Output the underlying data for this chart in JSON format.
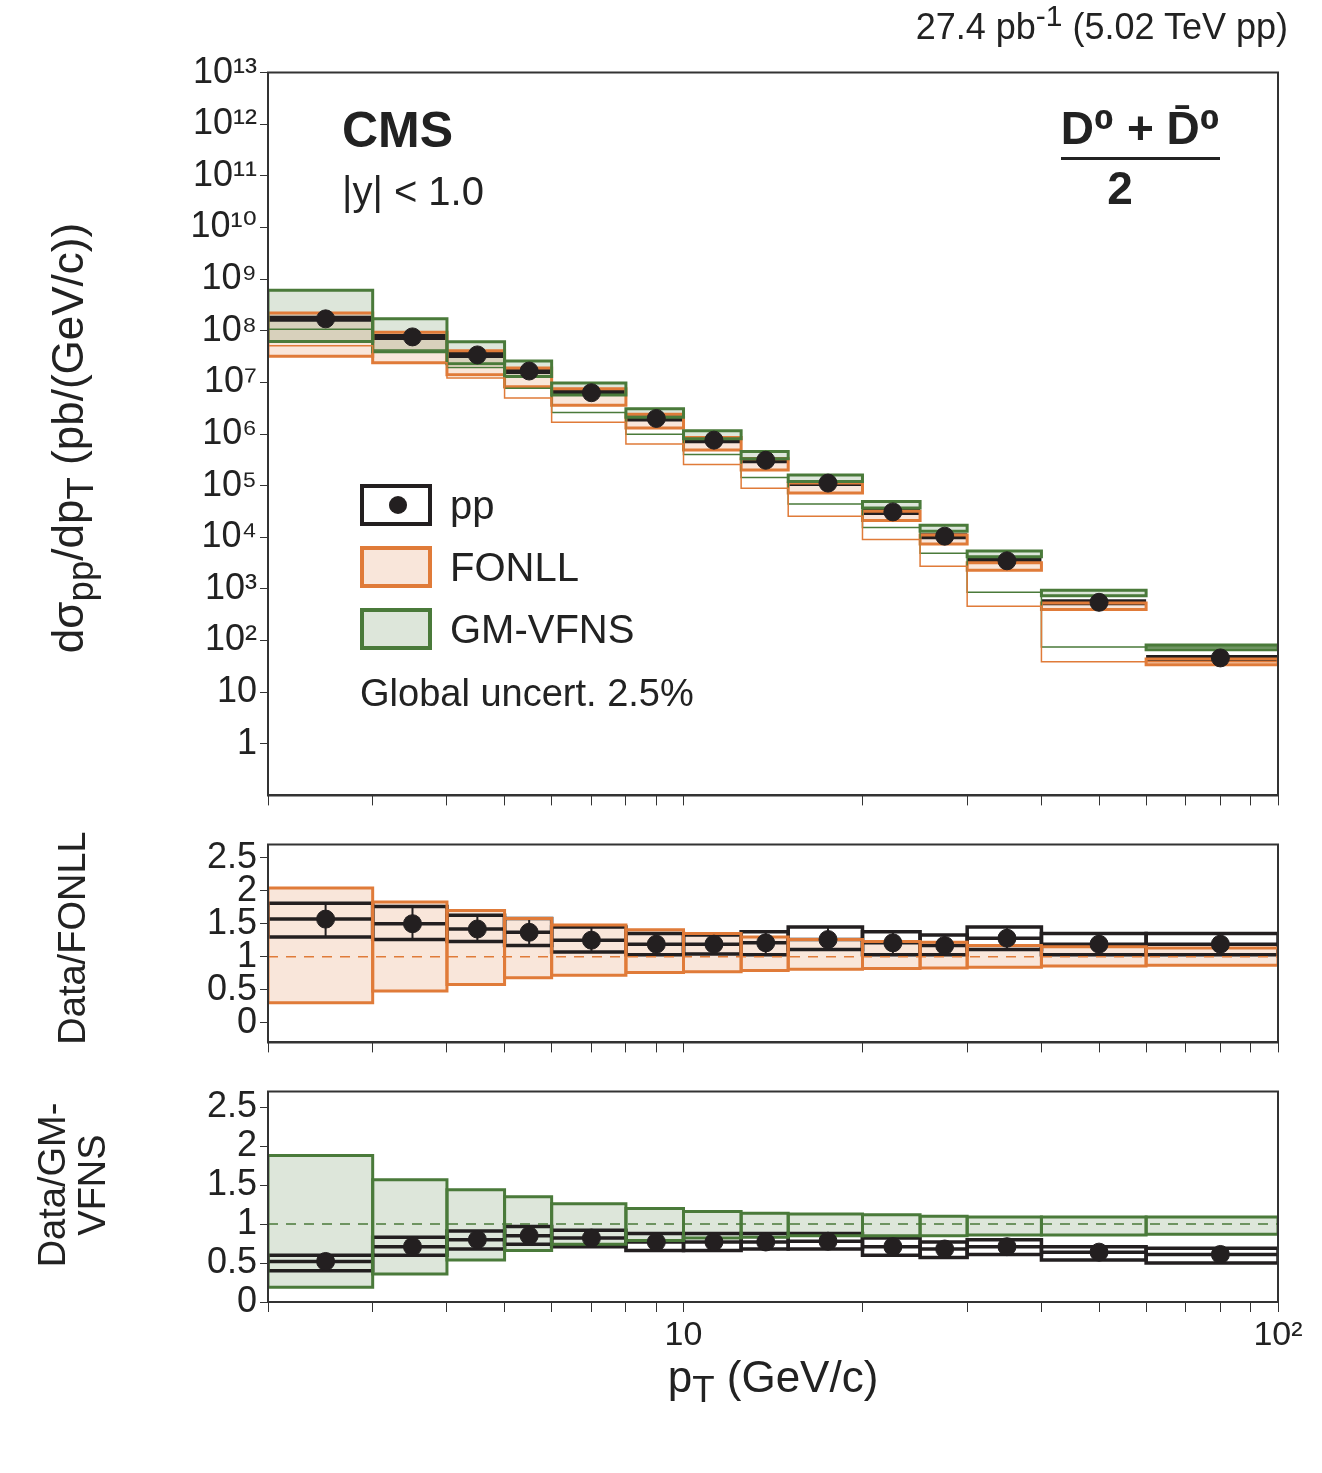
{
  "chart_data": [
    {
      "type": "scatter",
      "title": "27.4 pb$^{-1}$ (5.02 TeV pp)",
      "ylabel": "dσ$_{pp}$/dp$_{T}$ (pb/(GeV/c))",
      "annotations": [
        "CMS",
        "|y| < 1.0",
        "D⁰ + D̄⁰",
        "2",
        "Global uncert. 2.5%"
      ],
      "log": "xy",
      "xlim": [
        2,
        100
      ],
      "xticks": [
        {
          "value": 2,
          "label": null
        },
        {
          "value": 3,
          "label": null
        },
        {
          "value": 4,
          "label": null
        },
        {
          "value": 5,
          "label": null
        },
        {
          "value": 6,
          "label": null
        },
        {
          "value": 7,
          "label": null
        },
        {
          "value": 8,
          "label": null
        },
        {
          "value": 9,
          "label": null
        },
        {
          "value": 10,
          "label": null
        },
        {
          "value": 20,
          "label": null
        },
        {
          "value": 30,
          "label": null
        },
        {
          "value": 40,
          "label": null
        },
        {
          "value": 50,
          "label": null
        },
        {
          "value": 60,
          "label": null
        },
        {
          "value": 70,
          "label": null
        },
        {
          "value": 80,
          "label": null
        },
        {
          "value": 90,
          "label": null
        },
        {
          "value": 100,
          "label": null
        }
      ],
      "ylim": [
        0.1,
        10000000000000.0
      ],
      "yticks": [
        1,
        10,
        {
          "value": 100,
          "label": "10²"
        },
        {
          "value": 1000.0,
          "label": "10³"
        },
        {
          "value": 10000.0,
          "label": "10⁴"
        },
        {
          "value": 100000.0,
          "label": "10⁵"
        },
        {
          "value": 1000000.0,
          "label": "10⁶"
        },
        {
          "value": 10000000.0,
          "label": "10⁷"
        },
        {
          "value": 100000000.0,
          "label": "10⁸"
        },
        {
          "value": 1000000000.0,
          "label": "10⁹"
        },
        {
          "value": 10000000000.0,
          "label": "10¹⁰"
        },
        {
          "value": 100000000000.0,
          "label": "10¹¹"
        },
        {
          "value": 1000000000000.0,
          "label": "10¹²"
        },
        {
          "value": 10000000000000.0,
          "label": "10¹³"
        }
      ],
      "tick_labels": "y",
      "legend": "bottom left",
      "series": [
        {
          "name": "pp",
          "type": "scatter",
          "marker": "circle",
          "color": "#231f20",
          "x": [
            2.5,
            3.5,
            4.5,
            5.5,
            7,
            9,
            11.25,
            13.75,
            17.5,
            22.5,
            27.5,
            35,
            50,
            80
          ],
          "values": [
            170000000.0,
            76000000.0,
            34000000.0,
            16600000.0,
            6300000.0,
            2000000.0,
            760000.0,
            310000.0,
            112000.0,
            31000.0,
            10500.0,
            3500,
            550,
            46
          ],
          "xerrors": [
            [
              2,
              3
            ],
            [
              3,
              4
            ],
            [
              4,
              5
            ],
            [
              5,
              6
            ],
            [
              6,
              8
            ],
            [
              8,
              10
            ],
            [
              10,
              12.5
            ],
            [
              12.5,
              15
            ],
            [
              15,
              20
            ],
            [
              20,
              25
            ],
            [
              25,
              30
            ],
            [
              30,
              40
            ],
            [
              40,
              60
            ],
            [
              60,
              100
            ]
          ]
        },
        {
          "name": "FONLL",
          "type": "step",
          "color": "#e07b39",
          "x": [
            2,
            3,
            4,
            5,
            6,
            8,
            10,
            12.5,
            15,
            20,
            25,
            30,
            40,
            60,
            100
          ],
          "values": [
            108000000.0,
            51000000.0,
            24000000.0,
            12100000.0,
            5000000.0,
            1680000.0,
            640000.0,
            256000.0,
            89000.0,
            25600.0,
            9000.0,
            2730,
            460,
            39,
            39
          ],
          "lower": [
            32000000.0,
            24000000.0,
            14000000.0,
            8200000.0,
            3600000.0,
            1300000.0,
            490000.0,
            200000.0,
            72000.0,
            21000.0,
            7400,
            2300,
            400,
            34,
            34
          ],
          "upper": [
            220000000.0,
            93000000.0,
            41000000.0,
            19000000.0,
            7500000.0,
            2400000.0,
            860000.0,
            330000.0,
            112000.0,
            32000.0,
            11000.0,
            3200,
            530,
            44,
            44
          ]
        },
        {
          "name": "GM-VFNS",
          "type": "step",
          "color": "#4a7a3a",
          "x": [
            2,
            3,
            4,
            5,
            6,
            8,
            10,
            12.5,
            15,
            20,
            25,
            30,
            40,
            60,
            100
          ],
          "values": [
            330000000.0,
            107000000.0,
            42500000.0,
            19500000.0,
            7700000.0,
            2600000.0,
            990000.0,
            400000.0,
            144000.0,
            44000.0,
            15400.0,
            4900,
            860,
            75,
            75
          ],
          "lower": [
            62000000.0,
            39000000.0,
            23000000.0,
            13000000.0,
            5700000.0,
            2100000.0,
            810000.0,
            330000.0,
            120000.0,
            37000.0,
            13000.0,
            4200,
            740,
            66,
            66
          ],
          "upper": [
            610000000.0,
            170000000.0,
            61000000.0,
            26000000.0,
            9700000.0,
            3100000.0,
            1150000.0,
            460000.0,
            160000.0,
            49000.0,
            17000.0,
            5400,
            940,
            82,
            82
          ]
        }
      ]
    },
    {
      "type": "scatter",
      "ylabel": "Data/FONLL",
      "log": "x",
      "xlim": [
        2,
        100
      ],
      "xticks": [
        {
          "value": 2,
          "label": null
        },
        {
          "value": 3,
          "label": null
        },
        {
          "value": 4,
          "label": null
        },
        {
          "value": 5,
          "label": null
        },
        {
          "value": 6,
          "label": null
        },
        {
          "value": 7,
          "label": null
        },
        {
          "value": 8,
          "label": null
        },
        {
          "value": 9,
          "label": null
        },
        {
          "value": 10,
          "label": null
        },
        {
          "value": 20,
          "label": null
        },
        {
          "value": 30,
          "label": null
        },
        {
          "value": 40,
          "label": null
        },
        {
          "value": 50,
          "label": null
        },
        {
          "value": 60,
          "label": null
        },
        {
          "value": 70,
          "label": null
        },
        {
          "value": 80,
          "label": null
        },
        {
          "value": 90,
          "label": null
        },
        {
          "value": 100,
          "label": null
        }
      ],
      "ylim": [
        -0.3,
        2.7
      ],
      "yticks": [
        0,
        0.5,
        1,
        1.5,
        2,
        2.5
      ],
      "tick_labels": "y",
      "series": [
        {
          "type": "scatter",
          "marker": "circle",
          "color": "#231f20",
          "x": [
            2.5,
            3.5,
            4.5,
            5.5,
            7,
            9,
            11.25,
            13.75,
            17.5,
            22.5,
            27.5,
            35,
            50,
            80
          ],
          "values": [
            1.57,
            1.5,
            1.42,
            1.37,
            1.25,
            1.19,
            1.19,
            1.21,
            1.26,
            1.21,
            1.17,
            1.28,
            1.19,
            1.19
          ],
          "errors": [
            [
              1.3,
              1.81
            ],
            [
              1.26,
              1.76
            ],
            [
              1.23,
              1.63
            ],
            [
              1.17,
              1.58
            ],
            [
              1.07,
              1.45
            ],
            [
              1.03,
              1.35
            ],
            [
              1.04,
              1.33
            ],
            [
              1.03,
              1.38
            ],
            [
              1.11,
              1.45
            ],
            [
              1.03,
              1.38
            ],
            [
              1.03,
              1.33
            ],
            [
              1.11,
              1.45
            ],
            [
              1.03,
              1.35
            ],
            [
              1.03,
              1.35
            ]
          ],
          "xerrors": [
            [
              2,
              3
            ],
            [
              3,
              4
            ],
            [
              4,
              5
            ],
            [
              5,
              6
            ],
            [
              6,
              8
            ],
            [
              8,
              10
            ],
            [
              10,
              12.5
            ],
            [
              12.5,
              15
            ],
            [
              15,
              20
            ],
            [
              20,
              25
            ],
            [
              25,
              30
            ],
            [
              30,
              40
            ],
            [
              40,
              60
            ],
            [
              60,
              100
            ]
          ]
        },
        {
          "type": "step",
          "color": "#e07b39",
          "line_style": "dashed",
          "x": [
            2,
            3,
            4,
            5,
            6,
            8,
            10,
            12.5,
            15,
            20,
            25,
            30,
            40,
            60,
            100
          ],
          "values": [
            1,
            1,
            1,
            1,
            1,
            1,
            1,
            1,
            1,
            1,
            1,
            1,
            1,
            1,
            1
          ],
          "lower": [
            0.3,
            0.48,
            0.58,
            0.68,
            0.72,
            0.76,
            0.77,
            0.79,
            0.81,
            0.82,
            0.83,
            0.84,
            0.86,
            0.87,
            0.87
          ],
          "upper": [
            2.04,
            1.83,
            1.7,
            1.58,
            1.48,
            1.41,
            1.35,
            1.3,
            1.26,
            1.23,
            1.22,
            1.17,
            1.15,
            1.13,
            1.13
          ]
        }
      ]
    },
    {
      "type": "scatter",
      "ylabel": "Data/GM-VFNS",
      "xlabel": "p$_{T}$ (GeV/c)",
      "log": "x",
      "xlim": [
        2,
        100
      ],
      "xticks": [
        {
          "value": 2,
          "label": null
        },
        {
          "value": 3,
          "label": null
        },
        {
          "value": 4,
          "label": null
        },
        {
          "value": 5,
          "label": null
        },
        {
          "value": 6,
          "label": null
        },
        {
          "value": 7,
          "label": null
        },
        {
          "value": 8,
          "label": null
        },
        {
          "value": 9,
          "label": null
        },
        10,
        {
          "value": 20,
          "label": null
        },
        {
          "value": 30,
          "label": null
        },
        {
          "value": 40,
          "label": null
        },
        {
          "value": 50,
          "label": null
        },
        {
          "value": 60,
          "label": null
        },
        {
          "value": 70,
          "label": null
        },
        {
          "value": 80,
          "label": null
        },
        {
          "value": 90,
          "label": null
        },
        {
          "value": 100,
          "label": "10²"
        }
      ],
      "ylim": [
        0,
        2.7
      ],
      "yticks": [
        0,
        0.5,
        1,
        1.5,
        2,
        2.5
      ],
      "series": [
        {
          "type": "scatter",
          "marker": "circle",
          "color": "#231f20",
          "x": [
            2.5,
            3.5,
            4.5,
            5.5,
            7,
            9,
            11.25,
            13.75,
            17.5,
            22.5,
            27.5,
            35,
            50,
            80
          ],
          "values": [
            0.52,
            0.71,
            0.8,
            0.85,
            0.82,
            0.77,
            0.77,
            0.77,
            0.78,
            0.71,
            0.68,
            0.71,
            0.64,
            0.61
          ],
          "errors": [
            [
              0.4,
              0.6
            ],
            [
              0.6,
              0.83
            ],
            [
              0.68,
              0.91
            ],
            [
              0.74,
              0.97
            ],
            [
              0.71,
              0.92
            ],
            [
              0.66,
              0.88
            ],
            [
              0.66,
              0.88
            ],
            [
              0.68,
              0.88
            ],
            [
              0.68,
              0.88
            ],
            [
              0.6,
              0.82
            ],
            [
              0.57,
              0.77
            ],
            [
              0.61,
              0.8
            ],
            [
              0.54,
              0.71
            ],
            [
              0.5,
              0.69
            ]
          ],
          "xerrors": [
            [
              2,
              3
            ],
            [
              3,
              4
            ],
            [
              4,
              5
            ],
            [
              5,
              6
            ],
            [
              6,
              8
            ],
            [
              8,
              10
            ],
            [
              10,
              12.5
            ],
            [
              12.5,
              15
            ],
            [
              15,
              20
            ],
            [
              20,
              25
            ],
            [
              25,
              30
            ],
            [
              30,
              40
            ],
            [
              40,
              60
            ],
            [
              60,
              100
            ]
          ]
        },
        {
          "type": "step",
          "color": "#4a7a3a",
          "line_style": "dashed",
          "x": [
            2,
            3,
            4,
            5,
            6,
            8,
            10,
            12.5,
            15,
            20,
            25,
            30,
            40,
            60,
            100
          ],
          "values": [
            1,
            1,
            1,
            1,
            1,
            1,
            1,
            1,
            1,
            1,
            1,
            1,
            1,
            1,
            1
          ],
          "lower": [
            0.19,
            0.36,
            0.54,
            0.66,
            0.74,
            0.79,
            0.82,
            0.83,
            0.85,
            0.85,
            0.85,
            0.86,
            0.86,
            0.87,
            0.87
          ],
          "upper": [
            1.88,
            1.57,
            1.44,
            1.35,
            1.26,
            1.2,
            1.16,
            1.14,
            1.13,
            1.12,
            1.1,
            1.09,
            1.09,
            1.09,
            1.09
          ]
        }
      ]
    }
  ]
}
